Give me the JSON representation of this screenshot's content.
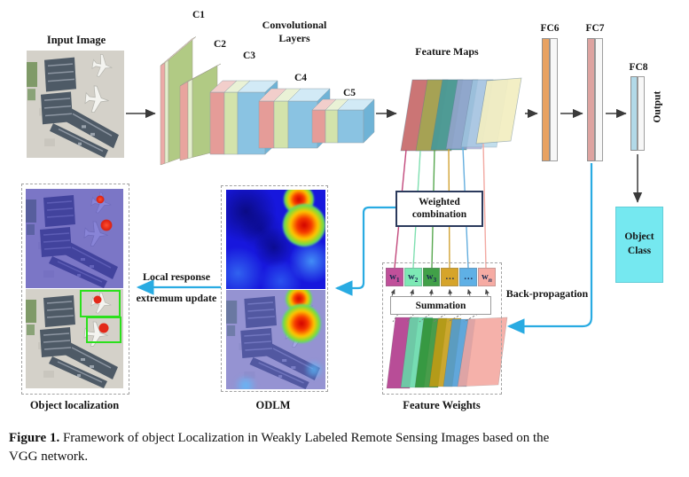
{
  "labels": {
    "input_image": "Input Image",
    "conv_layers_line1": "Convolutional",
    "conv_layers_line2": "Layers",
    "c1": "C1",
    "c2": "C2",
    "c3": "C3",
    "c4": "C4",
    "c5": "C5",
    "feature_maps": "Feature Maps",
    "fc6": "FC6",
    "fc7": "FC7",
    "fc8": "FC8",
    "output": "Output",
    "object_class_line1": "Object",
    "object_class_line2": "Class",
    "weighted_combination_line1": "Weighted",
    "weighted_combination_line2": "combination",
    "back_propagation": "Back-propagation",
    "summation": "Summation",
    "feature_weights": "Feature Weights",
    "odlm": "ODLM",
    "object_localization": "Object localization",
    "local_response_line1": "Local response",
    "local_response_line2": "extremum update"
  },
  "weights": {
    "items": [
      {
        "base": "w",
        "sub": "1",
        "bg": "#c0509a"
      },
      {
        "base": "w",
        "sub": "2",
        "bg": "#7de9b5"
      },
      {
        "base": "w",
        "sub": "3",
        "bg": "#41a048"
      },
      {
        "base": "…",
        "sub": "",
        "bg": "#d6a42a"
      },
      {
        "base": "…",
        "sub": "",
        "bg": "#5fb0e5"
      },
      {
        "base": "w",
        "sub": "n",
        "italic_sub": true,
        "bg": "#f6aba3"
      }
    ]
  },
  "colors": {
    "accent_cyan": "#29abe2",
    "object_class_fill": "#75e8f0"
  },
  "caption": {
    "label": "Figure 1.",
    "line1": " Framework of object Localization in Weakly Labeled Remote Sensing Images based on the",
    "line2": "VGG network."
  }
}
